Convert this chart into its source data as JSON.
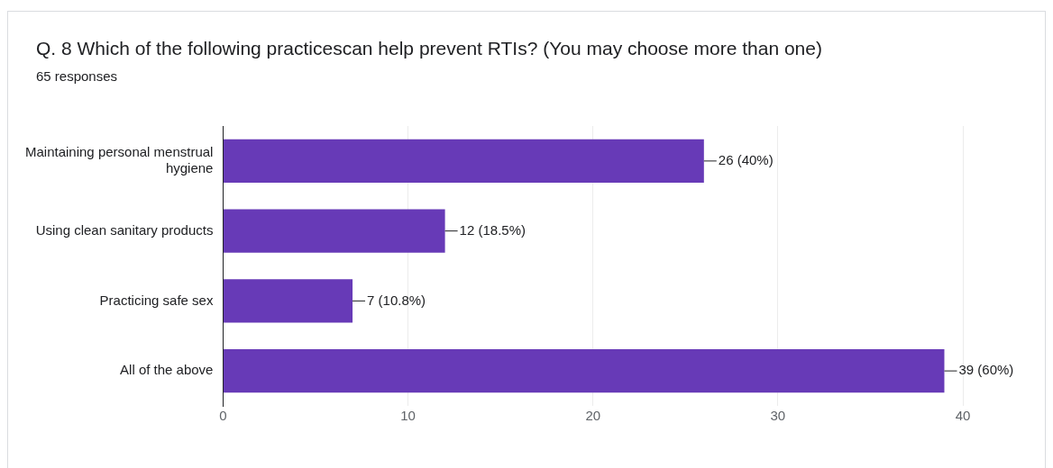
{
  "chart_data": {
    "type": "bar",
    "orientation": "horizontal",
    "title": "Q. 8 Which of the following practicescan help prevent RTIs? (You may choose more than one)",
    "subtitle": "65 responses",
    "categories": [
      "Maintaining personal menstrual hygiene",
      "Using clean sanitary products",
      "Practicing safe sex",
      "All of the above"
    ],
    "values": [
      26,
      12,
      7,
      39
    ],
    "color": "#673ab7",
    "value_labels": [
      "26 (40%)",
      "12 (18.5%)",
      "7 (10.8%)",
      "39 (60%)"
    ],
    "xlim": [
      0,
      40
    ],
    "xticks": [
      0,
      10,
      20,
      30,
      40
    ],
    "grid": "x"
  }
}
